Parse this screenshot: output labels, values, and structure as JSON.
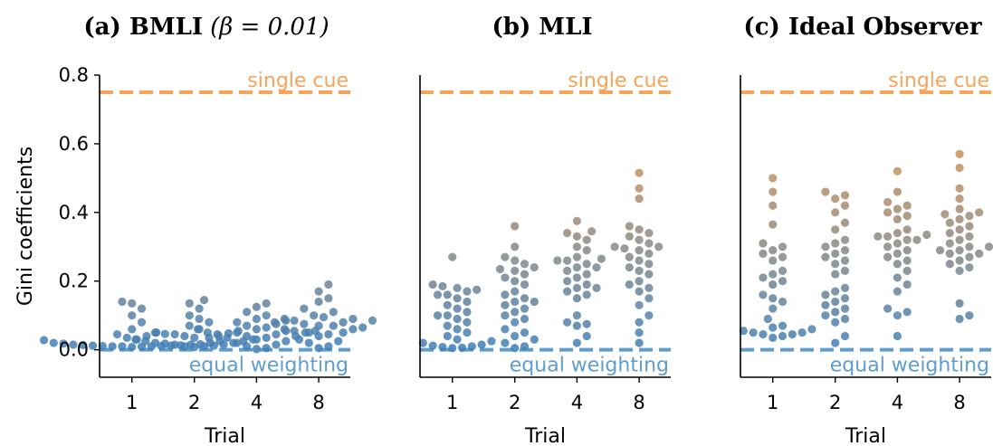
{
  "chart_data": [
    {
      "type": "scatter",
      "title": "(a) BMLI",
      "title_math": "(β = 0.01)",
      "xlabel": "Trial",
      "ylabel": "Gini coefficients",
      "categories": [
        "1",
        "2",
        "4",
        "8"
      ],
      "ylim": [
        -0.08,
        0.8
      ],
      "yticks": [
        "0.0",
        "0.2",
        "0.4",
        "0.6",
        "0.8"
      ],
      "show_y_ticks": true,
      "reference_lines": [
        {
          "label": "single cue",
          "y": 0.75,
          "color": "#f7a45a"
        },
        {
          "label": "equal weighting",
          "y": 0.0,
          "color": "#5f9ecb"
        }
      ],
      "points": [
        [
          0.14,
          0.135,
          0.12,
          0.1,
          0.08,
          0.06,
          0.05,
          0.045,
          0.04,
          0.035,
          0.03,
          0.028,
          0.025,
          0.02,
          0.02,
          0.018,
          0.016,
          0.015,
          0.015,
          0.014,
          0.013,
          0.012,
          0.012,
          0.011,
          0.011,
          0.01,
          0.01,
          0.01,
          0.009,
          0.008
        ],
        [
          0.145,
          0.135,
          0.12,
          0.1,
          0.09,
          0.08,
          0.07,
          0.06,
          0.055,
          0.05,
          0.048,
          0.046,
          0.045,
          0.04,
          0.04,
          0.035,
          0.035,
          0.03,
          0.03,
          0.025,
          0.025,
          0.02,
          0.02,
          0.018,
          0.015,
          0.015,
          0.012,
          0.01,
          0.01,
          0.008
        ],
        [
          0.135,
          0.125,
          0.11,
          0.1,
          0.09,
          0.085,
          0.08,
          0.075,
          0.07,
          0.065,
          0.06,
          0.06,
          0.055,
          0.055,
          0.05,
          0.05,
          0.05,
          0.045,
          0.045,
          0.04,
          0.04,
          0.035,
          0.035,
          0.03,
          0.025,
          0.02,
          0.015,
          0.01,
          0.005,
          0.002
        ],
        [
          0.19,
          0.17,
          0.15,
          0.14,
          0.12,
          0.11,
          0.1,
          0.095,
          0.09,
          0.09,
          0.085,
          0.085,
          0.08,
          0.08,
          0.075,
          0.07,
          0.07,
          0.065,
          0.06,
          0.06,
          0.055,
          0.05,
          0.05,
          0.045,
          0.04,
          0.03,
          0.025,
          0.02,
          0.01,
          0.005
        ]
      ]
    },
    {
      "type": "scatter",
      "title": "(b) MLI",
      "title_math": "",
      "xlabel": "Trial",
      "ylabel": "",
      "categories": [
        "1",
        "2",
        "4",
        "8"
      ],
      "ylim": [
        -0.08,
        0.8
      ],
      "yticks": [],
      "show_y_ticks": false,
      "reference_lines": [
        {
          "label": "single cue",
          "y": 0.75,
          "color": "#f7a45a"
        },
        {
          "label": "equal weighting",
          "y": 0.0,
          "color": "#5f9ecb"
        }
      ],
      "points": [
        [
          0.27,
          0.19,
          0.185,
          0.18,
          0.175,
          0.17,
          0.16,
          0.16,
          0.15,
          0.14,
          0.13,
          0.12,
          0.11,
          0.1,
          0.1,
          0.09,
          0.08,
          0.07,
          0.06,
          0.05,
          0.04,
          0.03,
          0.025,
          0.02,
          0.015,
          0.012,
          0.01,
          0.008,
          0.006,
          0.005
        ],
        [
          0.36,
          0.3,
          0.27,
          0.26,
          0.25,
          0.24,
          0.235,
          0.23,
          0.22,
          0.21,
          0.2,
          0.19,
          0.17,
          0.16,
          0.15,
          0.14,
          0.14,
          0.13,
          0.12,
          0.11,
          0.1,
          0.09,
          0.08,
          0.06,
          0.05,
          0.04,
          0.03,
          0.02,
          0.01,
          0.005
        ],
        [
          0.375,
          0.345,
          0.34,
          0.33,
          0.32,
          0.3,
          0.29,
          0.27,
          0.265,
          0.26,
          0.26,
          0.25,
          0.24,
          0.24,
          0.23,
          0.22,
          0.21,
          0.2,
          0.19,
          0.18,
          0.18,
          0.17,
          0.16,
          0.15,
          0.1,
          0.08,
          0.075,
          0.07,
          0.04,
          0.02
        ],
        [
          0.515,
          0.47,
          0.44,
          0.36,
          0.35,
          0.34,
          0.33,
          0.32,
          0.31,
          0.3,
          0.3,
          0.295,
          0.29,
          0.28,
          0.27,
          0.26,
          0.25,
          0.24,
          0.23,
          0.22,
          0.2,
          0.19,
          0.18,
          0.17,
          0.15,
          0.13,
          0.1,
          0.08,
          0.05,
          0.02
        ]
      ]
    },
    {
      "type": "scatter",
      "title": "(c) Ideal Observer",
      "title_math": "",
      "xlabel": "Trial",
      "ylabel": "",
      "categories": [
        "1",
        "2",
        "4",
        "8"
      ],
      "ylim": [
        -0.08,
        0.8
      ],
      "yticks": [],
      "show_y_ticks": false,
      "reference_lines": [
        {
          "label": "single cue",
          "y": 0.75,
          "color": "#f7a45a"
        },
        {
          "label": "equal weighting",
          "y": 0.0,
          "color": "#5f9ecb"
        }
      ],
      "points": [
        [
          0.5,
          0.46,
          0.42,
          0.365,
          0.31,
          0.3,
          0.29,
          0.28,
          0.27,
          0.26,
          0.23,
          0.22,
          0.21,
          0.2,
          0.19,
          0.16,
          0.15,
          0.14,
          0.12,
          0.09,
          0.07,
          0.065,
          0.06,
          0.055,
          0.05,
          0.05,
          0.045,
          0.045,
          0.04,
          0.035
        ],
        [
          0.46,
          0.45,
          0.44,
          0.42,
          0.4,
          0.37,
          0.35,
          0.32,
          0.31,
          0.3,
          0.29,
          0.28,
          0.27,
          0.26,
          0.25,
          0.23,
          0.22,
          0.18,
          0.17,
          0.16,
          0.15,
          0.14,
          0.13,
          0.12,
          0.11,
          0.1,
          0.09,
          0.08,
          0.04,
          0.02
        ],
        [
          0.52,
          0.46,
          0.43,
          0.42,
          0.41,
          0.4,
          0.39,
          0.38,
          0.35,
          0.34,
          0.335,
          0.33,
          0.33,
          0.32,
          0.32,
          0.31,
          0.3,
          0.29,
          0.28,
          0.27,
          0.26,
          0.25,
          0.23,
          0.21,
          0.19,
          0.17,
          0.12,
          0.11,
          0.1,
          0.04
        ],
        [
          0.57,
          0.53,
          0.47,
          0.44,
          0.41,
          0.4,
          0.395,
          0.39,
          0.38,
          0.37,
          0.36,
          0.35,
          0.34,
          0.33,
          0.32,
          0.31,
          0.3,
          0.3,
          0.29,
          0.29,
          0.28,
          0.28,
          0.27,
          0.26,
          0.25,
          0.24,
          0.23,
          0.135,
          0.1,
          0.09
        ]
      ]
    }
  ]
}
